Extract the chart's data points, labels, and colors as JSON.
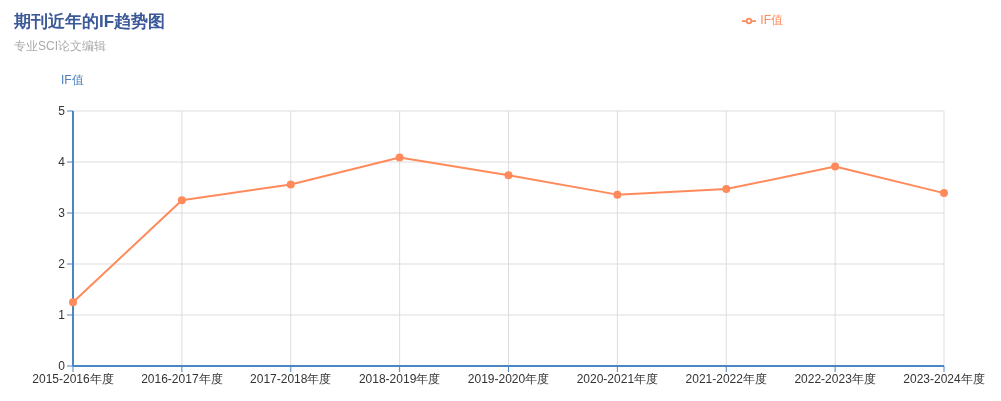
{
  "chart_data": {
    "type": "line",
    "title": "期刊近年的IF趋势图",
    "subtitle": "专业SCI论文编辑",
    "ylabel": "IF值",
    "categories": [
      "2015-2016年度",
      "2016-2017年度",
      "2017-2018年度",
      "2018-2019年度",
      "2019-2020年度",
      "2020-2021年度",
      "2021-2022年度",
      "2022-2023年度",
      "2023-2024年度"
    ],
    "series": [
      {
        "name": "IF值",
        "color": "#ff8a5b",
        "values": [
          1.25,
          3.25,
          3.56,
          4.09,
          3.74,
          3.36,
          3.47,
          3.91,
          3.39
        ]
      }
    ],
    "ylim": [
      0,
      5
    ],
    "yticks": [
      0,
      1,
      2,
      3,
      4,
      5
    ],
    "grid": true,
    "legend": "top right",
    "marker": "circle",
    "line_style": "solid"
  }
}
